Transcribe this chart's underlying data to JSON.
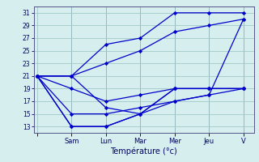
{
  "xlabel": "Température (°c)",
  "background_color": "#d6eeee",
  "grid_color": "#a0c8c8",
  "line_color": "#0000cc",
  "spine_color": "#555588",
  "x_tick_labels": [
    "",
    "Sam",
    "Lun",
    "Mar",
    "Mer",
    "Jeu",
    "V"
  ],
  "x_tick_positions": [
    0,
    1,
    2,
    3,
    4,
    5,
    6
  ],
  "ylim": [
    12,
    32
  ],
  "xlim": [
    -0.1,
    6.3
  ],
  "yticks": [
    13,
    15,
    17,
    19,
    21,
    23,
    25,
    27,
    29,
    31
  ],
  "series": [
    {
      "x": [
        0,
        1,
        2,
        3,
        4,
        5,
        6
      ],
      "y": [
        21,
        21,
        26,
        27,
        31,
        31,
        31
      ]
    },
    {
      "x": [
        0,
        1,
        2,
        3,
        4,
        5,
        6
      ],
      "y": [
        21,
        21,
        23,
        25,
        28,
        29,
        30
      ]
    },
    {
      "x": [
        0,
        1,
        2,
        3,
        4,
        5,
        6
      ],
      "y": [
        21,
        19,
        17,
        18,
        19,
        19,
        19
      ]
    },
    {
      "x": [
        0,
        1,
        2,
        3,
        4,
        5,
        6
      ],
      "y": [
        21,
        15,
        15,
        16,
        17,
        18,
        19
      ]
    },
    {
      "x": [
        0,
        1,
        2,
        3,
        4,
        5,
        6
      ],
      "y": [
        21,
        13,
        13,
        15,
        17,
        18,
        30
      ]
    },
    {
      "x": [
        0,
        1,
        2,
        3,
        4,
        5,
        6
      ],
      "y": [
        21,
        21,
        16,
        15,
        19,
        19,
        19
      ]
    },
    {
      "x": [
        0,
        1,
        2,
        3,
        4,
        5,
        6
      ],
      "y": [
        21,
        13,
        13,
        15,
        19,
        19,
        19
      ]
    }
  ]
}
